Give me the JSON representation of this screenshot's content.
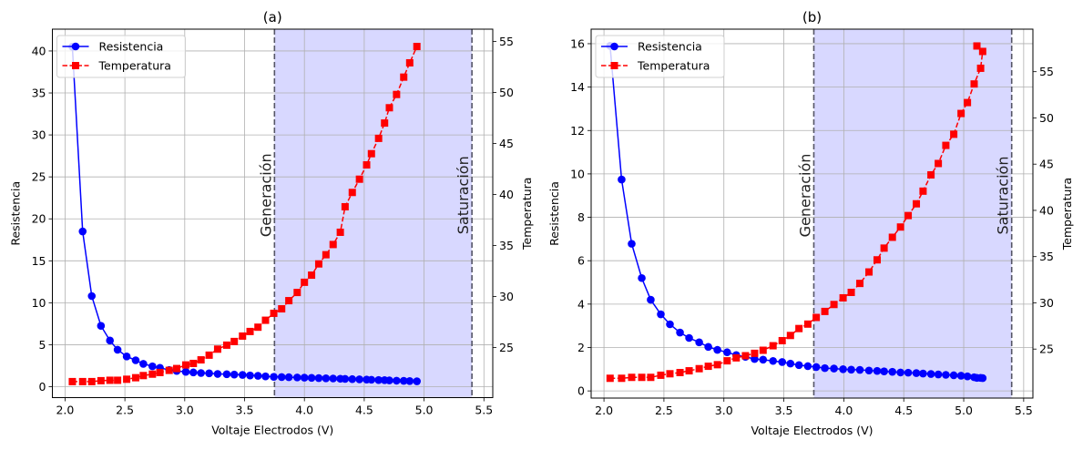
{
  "colors": {
    "resistencia": "#0000ff",
    "temperatura": "#ff0000",
    "region_fill": "#d8d8ff",
    "region_line": "#555566",
    "grid": "#b0b0b0"
  },
  "chart_data": [
    {
      "type": "line",
      "title": "(a)",
      "xlabel": "Voltaje Electrodos (V)",
      "ylabel": "Resistencia",
      "ylabel_right": "Temperatura",
      "xlim": [
        1.894,
        5.574
      ],
      "ylim": [
        -1.3,
        42.6
      ],
      "ylim_right": [
        20.1,
        56.2
      ],
      "xticks": [
        "2.0",
        "2.5",
        "3.0",
        "3.5",
        "4.0",
        "4.5",
        "5.0",
        "5.5"
      ],
      "yticks": [
        "0",
        "5",
        "10",
        "15",
        "20",
        "25",
        "30",
        "35",
        "40"
      ],
      "yticks_right": [
        "25",
        "30",
        "35",
        "40",
        "45",
        "50",
        "55"
      ],
      "grid": true,
      "legend_placement": "upper-left",
      "regions": [
        {
          "label": "Generación",
          "x": 3.75
        },
        {
          "label": "Saturación",
          "x": 5.4
        }
      ],
      "shaded_range": [
        3.75,
        5.4
      ],
      "x": [
        2.061,
        2.147,
        2.223,
        2.3,
        2.375,
        2.439,
        2.515,
        2.59,
        2.654,
        2.73,
        2.793,
        2.87,
        2.933,
        3.009,
        3.072,
        3.136,
        3.204,
        3.275,
        3.351,
        3.414,
        3.483,
        3.546,
        3.612,
        3.675,
        3.744,
        3.81,
        3.87,
        3.94,
        4.0,
        4.06,
        4.12,
        4.18,
        4.24,
        4.3,
        4.34,
        4.4,
        4.46,
        4.52,
        4.56,
        4.62,
        4.67,
        4.71,
        4.77,
        4.83,
        4.88,
        4.94
      ],
      "series": [
        {
          "name": "Resistencia",
          "axis": "left",
          "style": "solid-circle",
          "values": [
            40.5,
            18.5,
            10.8,
            7.25,
            5.5,
            4.4,
            3.6,
            3.15,
            2.72,
            2.43,
            2.25,
            1.99,
            1.88,
            1.77,
            1.7,
            1.63,
            1.6,
            1.52,
            1.49,
            1.45,
            1.41,
            1.34,
            1.3,
            1.23,
            1.18,
            1.15,
            1.13,
            1.1,
            1.08,
            1.05,
            1.03,
            1.0,
            0.98,
            0.95,
            0.93,
            0.9,
            0.88,
            0.85,
            0.83,
            0.8,
            0.78,
            0.75,
            0.72,
            0.7,
            0.67,
            0.65
          ]
        },
        {
          "name": "Temperatura",
          "axis": "right",
          "style": "dashed-square",
          "values": [
            21.67,
            21.67,
            21.67,
            21.76,
            21.8,
            21.8,
            21.9,
            22.05,
            22.26,
            22.4,
            22.56,
            22.77,
            22.95,
            23.3,
            23.45,
            23.8,
            24.26,
            24.85,
            25.24,
            25.6,
            26.13,
            26.58,
            27.0,
            27.68,
            28.36,
            28.8,
            29.6,
            30.4,
            31.4,
            32.1,
            33.2,
            34.1,
            35.1,
            36.3,
            38.8,
            40.2,
            41.5,
            42.9,
            44.0,
            45.5,
            47.0,
            48.5,
            49.8,
            51.5,
            52.9,
            54.5
          ]
        }
      ]
    },
    {
      "type": "line",
      "title": "(b)",
      "xlabel": "Voltaje Electrodos (V)",
      "ylabel": "Resistencia",
      "ylabel_right": "Temperatura",
      "xlim": [
        1.893,
        5.577
      ],
      "ylim": [
        -0.33,
        16.67
      ],
      "ylim_right": [
        19.7,
        59.6
      ],
      "xticks": [
        "2.0",
        "2.5",
        "3.0",
        "3.5",
        "4.0",
        "4.5",
        "5.0",
        "5.5"
      ],
      "yticks": [
        "0",
        "2",
        "4",
        "6",
        "8",
        "10",
        "12",
        "14",
        "16"
      ],
      "yticks_right": [
        "25",
        "30",
        "35",
        "40",
        "45",
        "50",
        "55"
      ],
      "grid": true,
      "legend_placement": "upper-left",
      "regions": [
        {
          "label": "Generación",
          "x": 3.75
        },
        {
          "label": "Saturación",
          "x": 5.4
        }
      ],
      "shaded_range": [
        3.75,
        5.4
      ],
      "x": [
        2.051,
        2.147,
        2.231,
        2.315,
        2.39,
        2.474,
        2.55,
        2.634,
        2.71,
        2.794,
        2.87,
        2.946,
        3.027,
        3.103,
        3.18,
        3.256,
        3.327,
        3.41,
        3.486,
        3.555,
        3.626,
        3.7,
        3.77,
        3.842,
        3.918,
        3.994,
        4.062,
        4.134,
        4.21,
        4.278,
        4.336,
        4.405,
        4.473,
        4.537,
        4.605,
        4.661,
        4.727,
        4.788,
        4.851,
        4.917,
        4.978,
        5.031,
        5.087,
        5.141,
        5.158,
        5.11
      ],
      "series": [
        {
          "name": "Resistencia",
          "axis": "left",
          "style": "solid-circle",
          "values": [
            15.9,
            9.74,
            6.78,
            5.2,
            4.2,
            3.53,
            3.07,
            2.69,
            2.44,
            2.24,
            2.03,
            1.89,
            1.78,
            1.65,
            1.57,
            1.47,
            1.44,
            1.38,
            1.33,
            1.26,
            1.19,
            1.14,
            1.1,
            1.05,
            1.03,
            1.0,
            0.98,
            0.97,
            0.94,
            0.92,
            0.9,
            0.88,
            0.85,
            0.84,
            0.82,
            0.8,
            0.78,
            0.76,
            0.74,
            0.72,
            0.7,
            0.67,
            0.63,
            0.6,
            0.59,
            0.6
          ]
        },
        {
          "name": "Temperatura",
          "axis": "right",
          "style": "dashed-square",
          "values": [
            21.84,
            21.84,
            21.94,
            21.94,
            21.94,
            22.17,
            22.33,
            22.46,
            22.65,
            22.88,
            23.14,
            23.31,
            23.73,
            24.05,
            24.28,
            24.54,
            24.87,
            25.36,
            25.91,
            26.47,
            27.22,
            27.7,
            28.42,
            29.07,
            29.82,
            30.54,
            31.13,
            32.1,
            33.34,
            34.65,
            35.92,
            37.09,
            38.2,
            39.44,
            40.71,
            42.08,
            43.84,
            45.07,
            47.03,
            48.23,
            50.48,
            51.66,
            53.67,
            55.37,
            57.19,
            57.78
          ]
        }
      ]
    }
  ]
}
